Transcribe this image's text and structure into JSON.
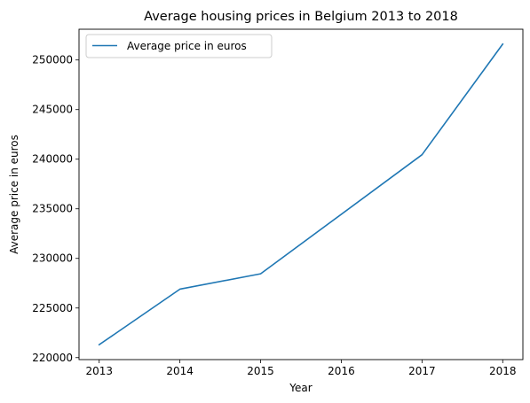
{
  "chart_data": {
    "type": "line",
    "title": "Average housing prices in Belgium 2013 to 2018",
    "xlabel": "Year",
    "ylabel": "Average price in euros",
    "x": [
      2013,
      2014,
      2015,
      2017,
      2018
    ],
    "x_ticks": [
      "2013",
      "2014",
      "2015",
      "2016",
      "2017",
      "2018"
    ],
    "x_tick_values": [
      2013,
      2014,
      2015,
      2016,
      2017,
      2018
    ],
    "y_ticks": [
      "220000",
      "225000",
      "230000",
      "235000",
      "240000",
      "245000",
      "250000"
    ],
    "y_tick_values": [
      220000,
      225000,
      230000,
      235000,
      240000,
      245000,
      250000
    ],
    "xlim": [
      2012.75,
      2018.25
    ],
    "ylim": [
      219800,
      253100
    ],
    "grid": false,
    "legend_position": "top-left",
    "series": [
      {
        "name": "Average price in euros",
        "color": "#1f77b4",
        "values": [
          221300,
          226900,
          228450,
          240450,
          251600
        ]
      }
    ]
  }
}
